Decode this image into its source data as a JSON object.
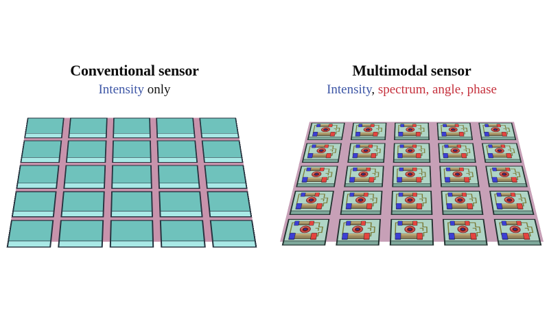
{
  "left": {
    "title": "Conventional sensor",
    "subtitle": [
      {
        "text": "Intensity",
        "color": "#3c55a5"
      },
      {
        "text": " only",
        "color": "#121212"
      }
    ],
    "array": {
      "rows": 5,
      "cols": 5,
      "substrate_color": "#c893ac",
      "tile_color": "#6fc2bc",
      "tile_front_color": "#a9e9e6",
      "outline_color": "#26323e",
      "front_depth": 14
    }
  },
  "right": {
    "title": "Multimodal sensor",
    "subtitle": [
      {
        "text": "Intensity",
        "color": "#3c55a5"
      },
      {
        "text": ", ",
        "color": "#121212"
      },
      {
        "text": "spectrum",
        "color": "#c5303c"
      },
      {
        "text": ", ",
        "color": "#c5303c"
      },
      {
        "text": "angle",
        "color": "#c5303c"
      },
      {
        "text": ", ",
        "color": "#c5303c"
      },
      {
        "text": "phase",
        "color": "#c5303c"
      }
    ],
    "array": {
      "rows": 5,
      "cols": 5,
      "substrate_color": "#c7a0b7",
      "tile_color": "#b0d5c6",
      "tile_front_color": "#7ea89b",
      "outline_color": "#233230",
      "front_depth": 10,
      "device": {
        "trace_color": "#7a7a36",
        "body_color": "#9b8a5f",
        "body_highlight": "#c0ab78",
        "blue_cap": "#3c3fd4",
        "red_cap": "#e4453f",
        "ring_color": "#ce4a45",
        "ring_highlight": "#e4736a",
        "ring_hole": "#772523",
        "center_dot": "#3c3fd4",
        "shade": "rgba(0,0,0,0.22)"
      }
    }
  }
}
